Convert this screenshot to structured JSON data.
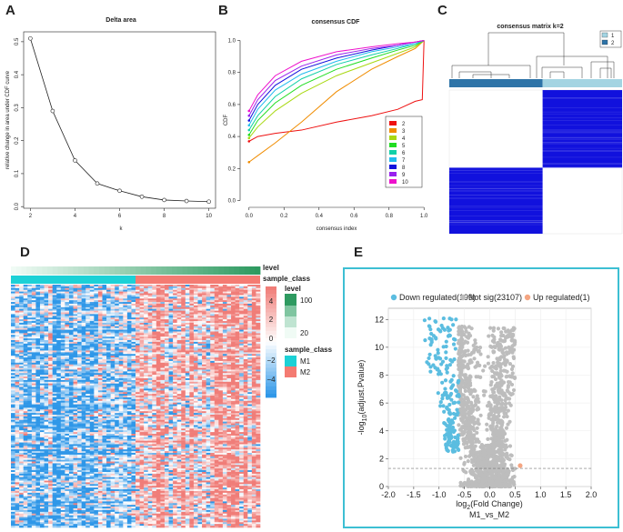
{
  "panels": {
    "A": "A",
    "B": "B",
    "C": "C",
    "D": "D",
    "E": "E"
  },
  "chart_data": [
    {
      "id": "A",
      "type": "line",
      "title": "Delta area",
      "xlabel": "k",
      "ylabel": "relative change in area under CDF curve",
      "x": [
        2,
        3,
        4,
        5,
        6,
        7,
        8,
        9,
        10
      ],
      "y": [
        0.51,
        0.29,
        0.14,
        0.07,
        0.048,
        0.03,
        0.02,
        0.017,
        0.015
      ],
      "xlim": [
        1.7,
        10.3
      ],
      "ylim": [
        -0.005,
        0.53
      ],
      "xticks": [
        "2",
        "4",
        "6",
        "8",
        "10"
      ],
      "yticks": [
        "0.0",
        "0.1",
        "0.2",
        "0.3",
        "0.4",
        "0.5"
      ],
      "colors": {
        "line": "#222222"
      }
    },
    {
      "id": "B",
      "type": "line",
      "title": "consensus CDF",
      "xlabel": "consensus index",
      "ylabel": "CDF",
      "xlim": [
        -0.03,
        1.03
      ],
      "ylim": [
        -0.02,
        1.02
      ],
      "xticks": [
        "0.0",
        "0.2",
        "0.4",
        "0.6",
        "0.8",
        "1.0"
      ],
      "yticks": [
        "0.0",
        "0.2",
        "0.4",
        "0.6",
        "0.8",
        "1.0"
      ],
      "series": [
        {
          "name": "2",
          "color": "#ee1111",
          "x": [
            0,
            0.05,
            0.15,
            0.3,
            0.5,
            0.7,
            0.85,
            0.95,
            0.99,
            1.0
          ],
          "y": [
            0.37,
            0.4,
            0.42,
            0.44,
            0.49,
            0.53,
            0.57,
            0.62,
            0.63,
            1.0
          ]
        },
        {
          "name": "3",
          "color": "#f08c00",
          "x": [
            0,
            0.05,
            0.15,
            0.3,
            0.5,
            0.7,
            0.85,
            0.95,
            1.0
          ],
          "y": [
            0.24,
            0.28,
            0.36,
            0.49,
            0.68,
            0.82,
            0.9,
            0.95,
            1.0
          ]
        },
        {
          "name": "4",
          "color": "#a8d812",
          "x": [
            0,
            0.05,
            0.15,
            0.3,
            0.5,
            0.7,
            0.85,
            0.95,
            1.0
          ],
          "y": [
            0.39,
            0.46,
            0.56,
            0.67,
            0.78,
            0.86,
            0.92,
            0.96,
            1.0
          ]
        },
        {
          "name": "5",
          "color": "#22dd22",
          "x": [
            0,
            0.05,
            0.15,
            0.3,
            0.5,
            0.7,
            0.85,
            0.95,
            1.0
          ],
          "y": [
            0.41,
            0.5,
            0.61,
            0.72,
            0.82,
            0.89,
            0.94,
            0.97,
            1.0
          ]
        },
        {
          "name": "6",
          "color": "#11d0a8",
          "x": [
            0,
            0.05,
            0.15,
            0.3,
            0.5,
            0.7,
            0.85,
            0.95,
            1.0
          ],
          "y": [
            0.44,
            0.53,
            0.65,
            0.76,
            0.85,
            0.91,
            0.95,
            0.98,
            1.0
          ]
        },
        {
          "name": "7",
          "color": "#22bbee",
          "x": [
            0,
            0.05,
            0.15,
            0.3,
            0.5,
            0.7,
            0.85,
            0.95,
            1.0
          ],
          "y": [
            0.47,
            0.57,
            0.69,
            0.79,
            0.87,
            0.93,
            0.96,
            0.98,
            1.0
          ]
        },
        {
          "name": "8",
          "color": "#1111dd",
          "x": [
            0,
            0.05,
            0.15,
            0.3,
            0.5,
            0.7,
            0.85,
            0.95,
            1.0
          ],
          "y": [
            0.5,
            0.6,
            0.72,
            0.82,
            0.89,
            0.94,
            0.97,
            0.99,
            1.0
          ]
        },
        {
          "name": "9",
          "color": "#9922ee",
          "x": [
            0,
            0.05,
            0.15,
            0.3,
            0.5,
            0.7,
            0.85,
            0.95,
            1.0
          ],
          "y": [
            0.53,
            0.63,
            0.75,
            0.84,
            0.91,
            0.95,
            0.97,
            0.99,
            1.0
          ]
        },
        {
          "name": "10",
          "color": "#ee11cc",
          "x": [
            0,
            0.05,
            0.15,
            0.3,
            0.5,
            0.7,
            0.85,
            0.95,
            1.0
          ],
          "y": [
            0.56,
            0.66,
            0.78,
            0.87,
            0.93,
            0.96,
            0.98,
            0.99,
            1.0
          ]
        }
      ]
    },
    {
      "id": "C",
      "type": "heatmap",
      "title": "consensus matrix k=2",
      "legend": [
        {
          "label": "1",
          "color": "#a3d4e2"
        },
        {
          "label": "2",
          "color": "#2e74a8"
        }
      ],
      "clusters": [
        {
          "name": "1",
          "fraction": 0.54
        },
        {
          "name": "2",
          "fraction": 0.46
        }
      ],
      "colors": {
        "block": "#1111dd",
        "bg": "#ffffff"
      }
    },
    {
      "id": "D",
      "type": "heatmap",
      "annotations": [
        {
          "name": "level",
          "range": [
            20,
            100
          ],
          "colors": [
            "#f0fbf5",
            "#2e9a60"
          ]
        },
        {
          "name": "sample_class",
          "classes": [
            {
              "label": "M1",
              "color": "#1cd1d6"
            },
            {
              "label": "M2",
              "color": "#f47b72"
            }
          ],
          "fraction_M1": 0.5
        }
      ],
      "legend_level": {
        "title": "level",
        "ticks": [
          "100",
          "20"
        ]
      },
      "legend_class": {
        "title": "sample_class",
        "labels": [
          "M1",
          "M2"
        ]
      },
      "colorbar": {
        "ticks": [
          "4",
          "2",
          "0",
          "−2",
          "−4"
        ],
        "range": [
          -4,
          4
        ],
        "low": "#2f97e8",
        "mid": "#ffffff",
        "high": "#f07d78"
      }
    },
    {
      "id": "E",
      "type": "scatter",
      "xlabel_main": "log",
      "xlabel_sub": "2",
      "xlabel_rest": "(Fold Change)",
      "xlabel_line2": "M1_vs_M2",
      "ylabel_main": "-log",
      "ylabel_sub": "10",
      "ylabel_rest": "(adjust.Pvalue)",
      "xlim": [
        -2.0,
        2.0
      ],
      "ylim": [
        0,
        12.8
      ],
      "xticks": [
        "-2.0",
        "-1.5",
        "-1.0",
        "-0.5",
        "0.0",
        "0.5",
        "1.0",
        "1.5",
        "2.0"
      ],
      "yticks": [
        "0",
        "2",
        "4",
        "6",
        "8",
        "10",
        "12"
      ],
      "threshold_y": 1.3,
      "groups": [
        {
          "name": "Down regulated(199)",
          "count": 199,
          "color": "#5bbde0"
        },
        {
          "name": "Not sig(23107)",
          "count": 23107,
          "color": "#bdbdbd"
        },
        {
          "name": "Up regulated(1)",
          "count": 1,
          "color": "#f4a582"
        }
      ],
      "up_point": {
        "x": 0.6,
        "y": 1.5
      },
      "border_color": "#3dbfd3"
    }
  ]
}
